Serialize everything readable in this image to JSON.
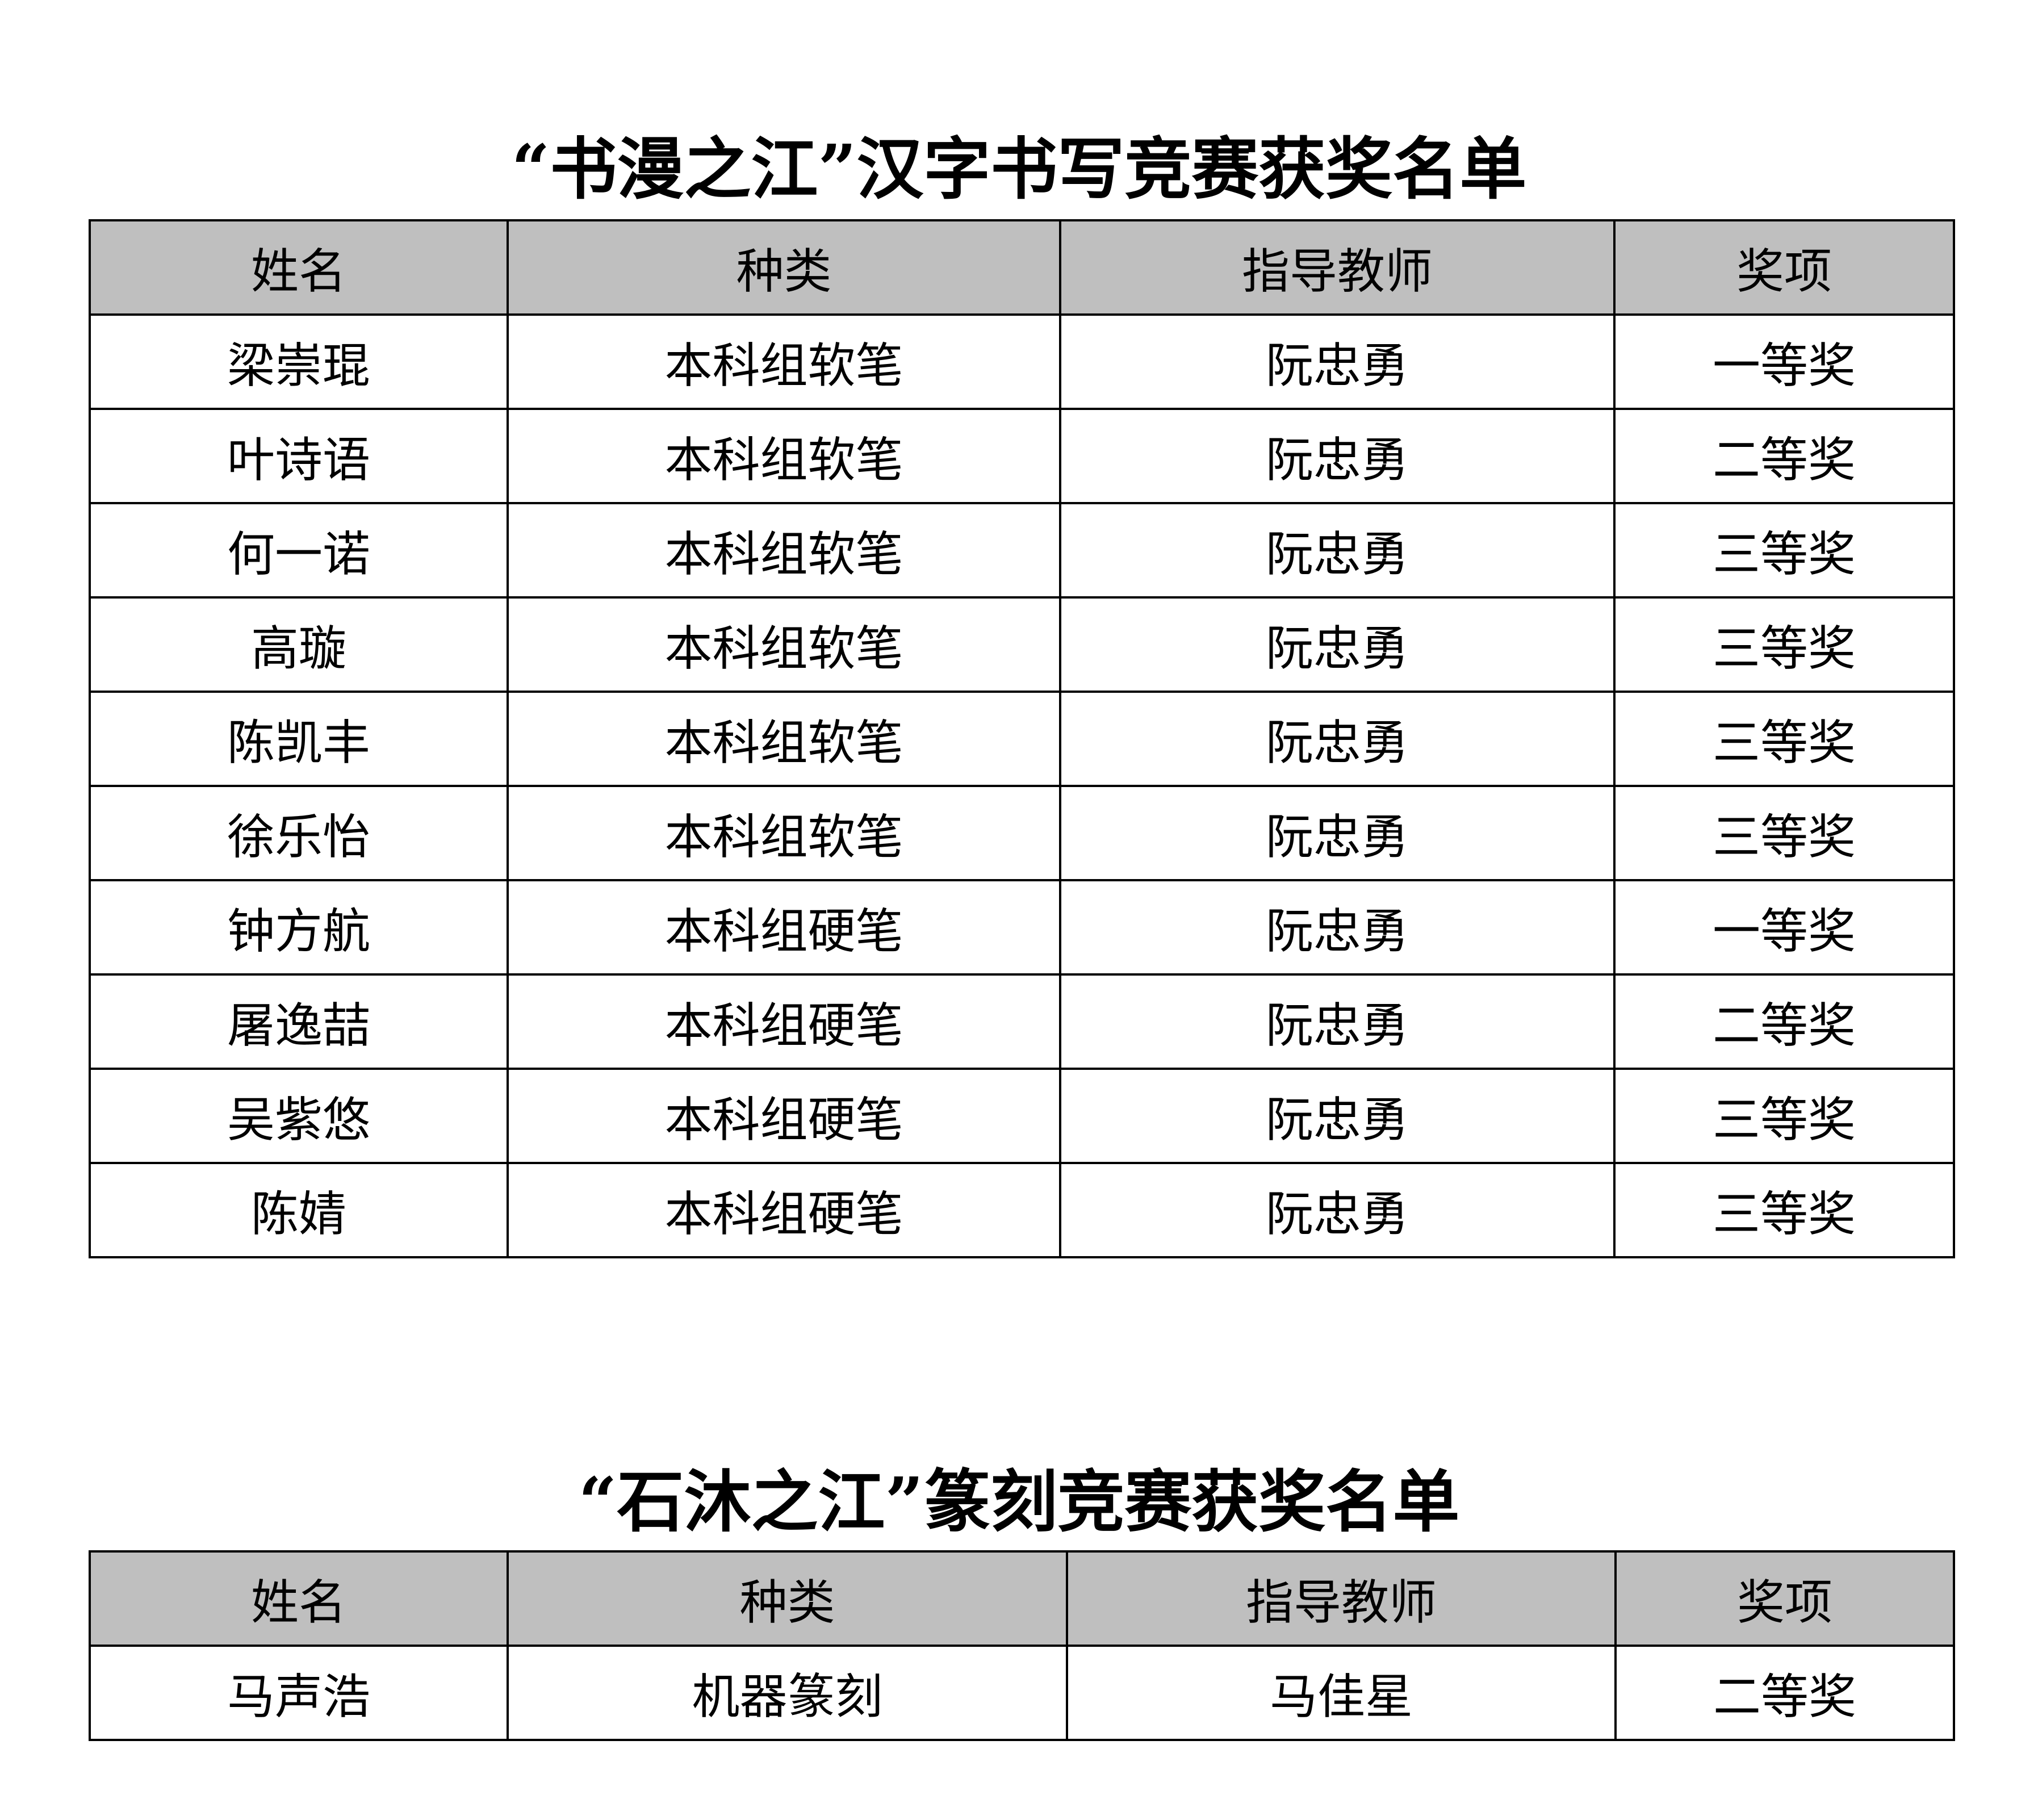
{
  "table1": {
    "title": "“书漫之江”汉字书写竞赛获奖名单",
    "headers": [
      "姓名",
      "种类",
      "指导教师",
      "奖项"
    ],
    "rows": [
      [
        "梁崇琨",
        "本科组软笔",
        "阮忠勇",
        "一等奖"
      ],
      [
        "叶诗语",
        "本科组软笔",
        "阮忠勇",
        "二等奖"
      ],
      [
        "何一诺",
        "本科组软笔",
        "阮忠勇",
        "三等奖"
      ],
      [
        "高璇",
        "本科组软笔",
        "阮忠勇",
        "三等奖"
      ],
      [
        "陈凯丰",
        "本科组软笔",
        "阮忠勇",
        "三等奖"
      ],
      [
        "徐乐怡",
        "本科组软笔",
        "阮忠勇",
        "三等奖"
      ],
      [
        "钟方航",
        "本科组硬笔",
        "阮忠勇",
        "一等奖"
      ],
      [
        "屠逸喆",
        "本科组硬笔",
        "阮忠勇",
        "二等奖"
      ],
      [
        "吴紫悠",
        "本科组硬笔",
        "阮忠勇",
        "三等奖"
      ],
      [
        "陈婧",
        "本科组硬笔",
        "阮忠勇",
        "三等奖"
      ]
    ]
  },
  "table2": {
    "title": "“石沐之江”篆刻竞赛获奖名单",
    "headers": [
      "姓名",
      "种类",
      "指导教师",
      "奖项"
    ],
    "rows": [
      [
        "马声浩",
        "机器篆刻",
        "马佳星",
        "二等奖"
      ]
    ]
  },
  "colors": {
    "header_bg": "#bfbfbf"
  }
}
